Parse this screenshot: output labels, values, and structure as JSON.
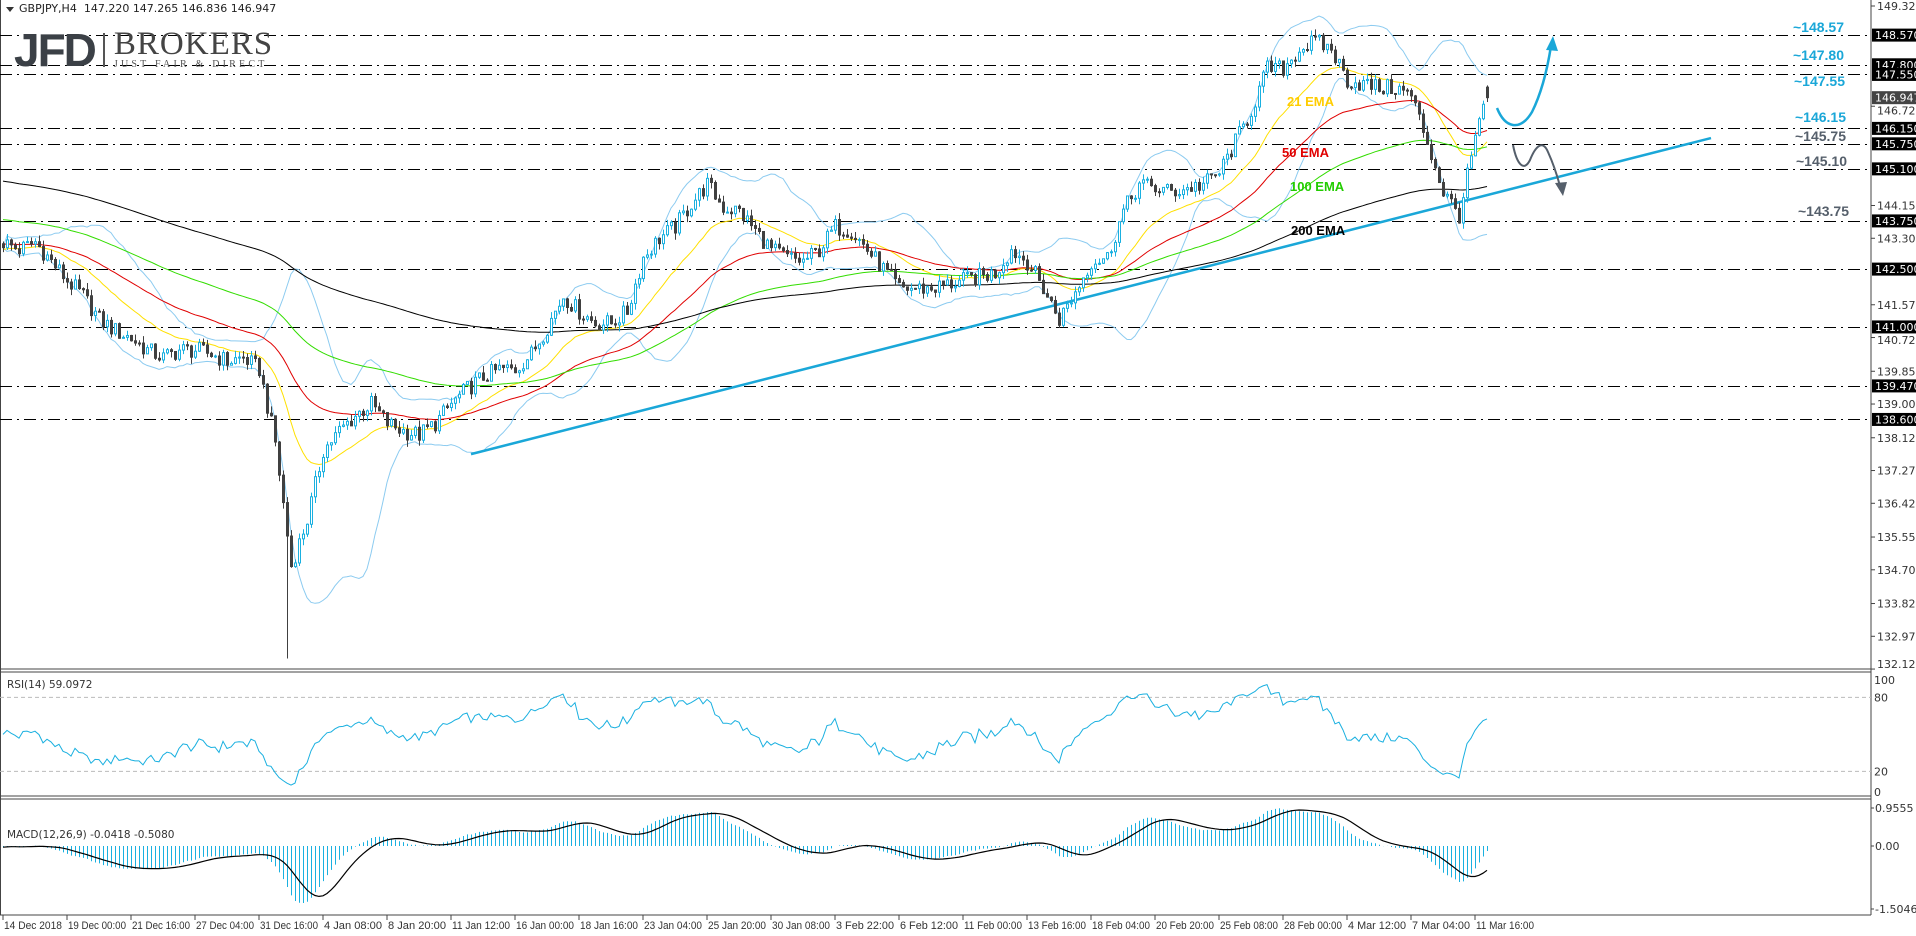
{
  "header": {
    "symbol": "GBPJPY,H4",
    "ohlc": "147.220 147.265 146.836 146.947"
  },
  "logo": {
    "main": "JFD",
    "brand": "BROKERS",
    "tagline": "JUST FAIR & DIRECT"
  },
  "rsi_label": "RSI(14) 59.0972",
  "macd_label": "MACD(12,26,9) -0.0418 -0.5080",
  "chart_data": {
    "type": "candlestick",
    "title": "",
    "timeframe": "H4",
    "colors": {
      "bull_body": "#ffffff",
      "bull_outline": "#1ab0e0",
      "bear": "#404040",
      "ema21": "#ffe000",
      "ema50": "#e00000",
      "ema100": "#33dd00",
      "ema200": "#000000",
      "bollinger": "#8ccbf0",
      "trendline": "#1aa7d8",
      "rsi": "#1ab0e0",
      "macd_hist": "#1ab0e0",
      "macd_signal": "#000000",
      "level_line": "#000000",
      "upside_label": "#1aa7d8",
      "downside_label": "#555f6b"
    },
    "price": {
      "closes_every_4_bars": [
        143.2,
        143.0,
        143.2,
        142.7,
        142.2,
        141.8,
        141.2,
        140.9,
        140.7,
        140.4,
        140.2,
        140.4,
        140.4,
        140.3,
        140.1,
        140.2,
        139.9,
        138.0,
        134.8,
        136.0,
        137.8,
        138.3,
        138.7,
        139.0,
        138.5,
        138.3,
        138.2,
        138.5,
        139.0,
        139.4,
        139.7,
        139.9,
        139.9,
        140.3,
        141.0,
        141.8,
        141.4,
        141.1,
        141.1,
        141.4,
        142.8,
        143.3,
        143.6,
        144.2,
        144.7,
        144.1,
        144.0,
        143.5,
        143.0,
        142.8,
        142.7,
        143.0,
        143.6,
        143.5,
        143.0,
        142.5,
        142.0,
        142.0,
        142.0,
        142.1,
        142.2,
        142.3,
        142.4,
        143.0,
        142.7,
        142.0,
        141.2,
        141.9,
        142.7,
        142.8,
        144.0,
        144.7,
        144.6,
        144.5,
        144.6,
        144.7,
        145.0,
        145.8,
        146.6,
        147.7,
        147.7,
        148.2,
        148.4,
        148.2,
        147.4,
        147.3,
        147.2,
        147.2,
        147.0,
        145.8,
        144.5,
        143.9,
        145.9
      ],
      "flash_crash_low": 132.4,
      "last_bar": {
        "open": 147.22,
        "high": 147.265,
        "low": 146.836,
        "close": 146.947
      }
    },
    "indicators": {
      "ema": [
        {
          "name": "21 EMA",
          "period": 21,
          "color_key": "ema21"
        },
        {
          "name": "50 EMA",
          "period": 50,
          "color_key": "ema50"
        },
        {
          "name": "100 EMA",
          "period": 100,
          "color_key": "ema100"
        },
        {
          "name": "200 EMA",
          "period": 200,
          "color_key": "ema200"
        }
      ],
      "bollinger": {
        "period": 20,
        "deviations": 2
      },
      "rsi": {
        "period": 14,
        "value": 59.0972,
        "levels": [
          80,
          20
        ],
        "axis_ticks": [
          "100",
          "80",
          "20",
          "0"
        ]
      },
      "macd": {
        "fast": 12,
        "slow": 26,
        "signal": 9,
        "main": -0.0418,
        "signal_value": -0.508,
        "axis_ticks": [
          "0.9555",
          "0.00",
          "-1.5046"
        ]
      }
    },
    "levels": [
      {
        "price": 148.57,
        "axis": "148.570",
        "label": "~148.57",
        "side": "up"
      },
      {
        "price": 147.8,
        "axis": "147.800",
        "label": "~147.80",
        "side": "up"
      },
      {
        "price": 147.55,
        "axis": "147.550",
        "label": "~147.55",
        "side": "up"
      },
      {
        "price": 146.15,
        "axis": "146.150",
        "label": "~146.15",
        "side": "up"
      },
      {
        "price": 145.75,
        "axis": "145.750",
        "label": "~145.75",
        "side": "down"
      },
      {
        "price": 145.1,
        "axis": "145.100",
        "label": "~145.10",
        "side": "down"
      },
      {
        "price": 143.75,
        "axis": "143.750",
        "label": "~143.75",
        "side": "down"
      },
      {
        "price": 142.5,
        "axis": "142.500",
        "label": ""
      },
      {
        "price": 141.0,
        "axis": "141.000",
        "label": ""
      },
      {
        "price": 139.47,
        "axis": "139.470",
        "label": ""
      },
      {
        "price": 138.6,
        "axis": "138.600",
        "label": ""
      }
    ],
    "current_price": {
      "price": 146.947,
      "axis": "146.947"
    },
    "trendline": {
      "from_price": 137.7,
      "to_price": 145.9
    },
    "price_axis": {
      "range": [
        132.125,
        149.325
      ],
      "ticks": [
        "149.325",
        "146.725",
        "144.150",
        "143.300",
        "141.575",
        "140.725",
        "139.850",
        "139.000",
        "138.125",
        "137.275",
        "136.425",
        "135.550",
        "134.700",
        "133.825",
        "132.975",
        "132.125"
      ]
    },
    "time_axis": {
      "ticks": [
        "14 Dec 2018",
        "19 Dec 00:00",
        "21 Dec 16:00",
        "27 Dec 04:00",
        "31 Dec 16:00",
        "4 Jan 08:00",
        "8 Jan 20:00",
        "11 Jan 12:00",
        "16 Jan 00:00",
        "18 Jan 16:00",
        "23 Jan 04:00",
        "25 Jan 20:00",
        "30 Jan 08:00",
        "3 Feb 22:00",
        "6 Feb 12:00",
        "11 Feb 00:00",
        "13 Feb 16:00",
        "18 Feb 04:00",
        "20 Feb 20:00",
        "25 Feb 08:00",
        "28 Feb 00:00",
        "4 Mar 12:00",
        "7 Mar 04:00",
        "11 Mar 16:00"
      ]
    },
    "scenario_arrows": [
      {
        "direction": "up",
        "color_key": "upside_label"
      },
      {
        "direction": "down",
        "color_key": "downside_label"
      }
    ]
  }
}
